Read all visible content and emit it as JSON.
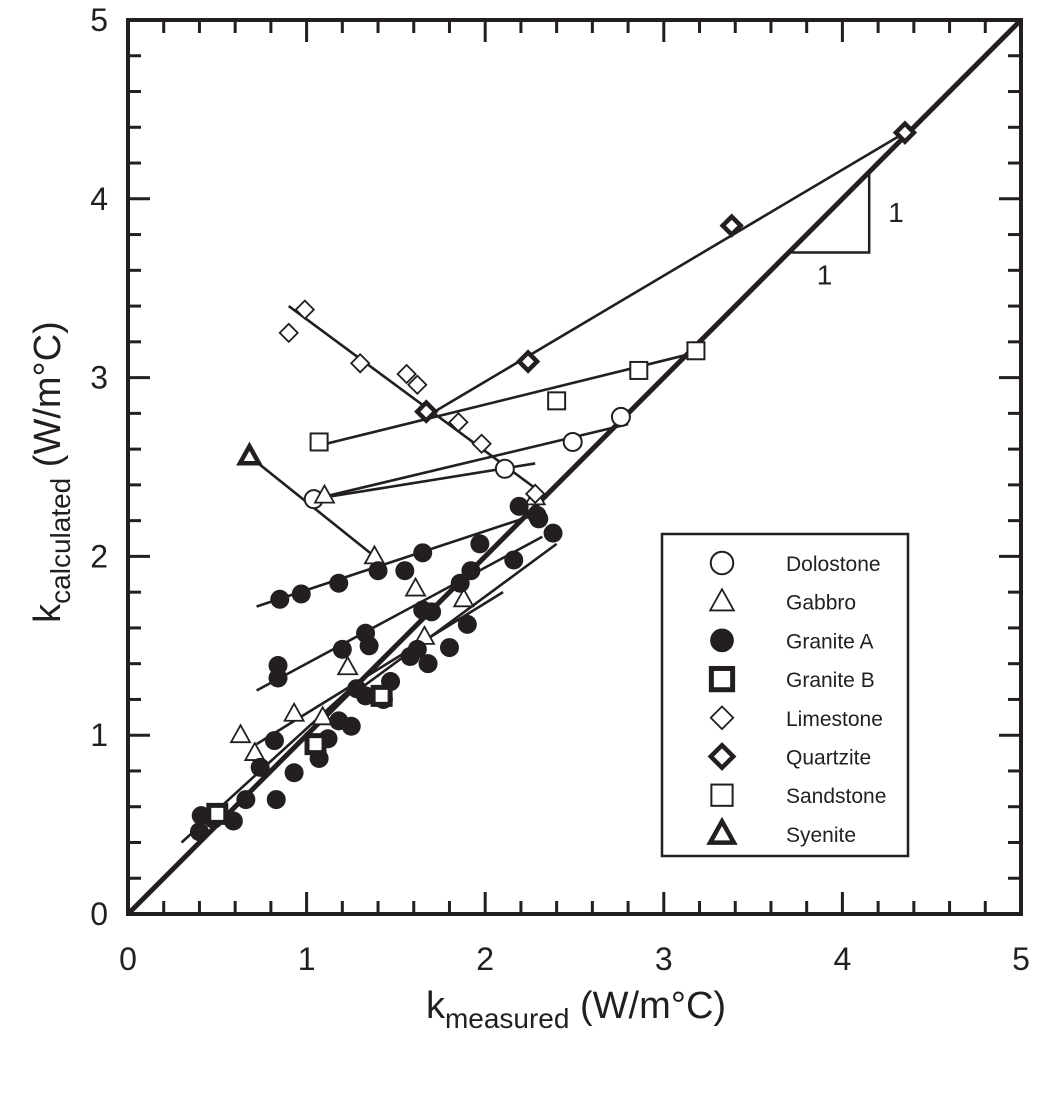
{
  "chart_data": {
    "type": "scatter",
    "title": "",
    "xlabel": {
      "main": "k",
      "sub": "measured",
      "unit": " (W/m°C)"
    },
    "ylabel": {
      "main": "k",
      "sub": "calculated",
      "unit": " (W/m°C)"
    },
    "xlim": [
      0,
      5
    ],
    "ylim": [
      0,
      5
    ],
    "x_ticks": [
      "0",
      "1",
      "2",
      "3",
      "4",
      "5"
    ],
    "y_ticks": [
      "0",
      "1",
      "2",
      "3",
      "4",
      "5"
    ],
    "minor_step": 0.2,
    "grid": false,
    "legend_position": "lower-right",
    "colors": {
      "ink": "#231f20",
      "background": "#ffffff"
    },
    "reference_line": {
      "points": [
        [
          0,
          0
        ],
        [
          5,
          5
        ]
      ]
    },
    "slope_marker": {
      "points": [
        [
          3.7,
          3.7
        ],
        [
          4.15,
          3.7
        ],
        [
          4.15,
          4.15
        ]
      ],
      "label_run": "1",
      "label_rise": "1",
      "label_run_at": [
        3.9,
        3.52
      ],
      "label_rise_at": [
        4.3,
        3.87
      ]
    },
    "series": [
      {
        "name": "Dolostone",
        "marker": "circle-open",
        "points": [
          [
            1.04,
            2.32
          ],
          [
            2.11,
            2.49
          ],
          [
            2.49,
            2.64
          ],
          [
            2.76,
            2.78
          ]
        ],
        "fit": [
          [
            1.04,
            2.32
          ],
          [
            2.8,
            2.74
          ]
        ]
      },
      {
        "name": "Gabbro",
        "marker": "triangle-open",
        "points": [
          [
            0.63,
            1.0
          ],
          [
            0.71,
            0.9
          ],
          [
            0.93,
            1.12
          ],
          [
            1.09,
            1.1
          ],
          [
            1.23,
            1.38
          ],
          [
            1.38,
            2.0
          ],
          [
            1.61,
            1.82
          ],
          [
            1.66,
            1.55
          ],
          [
            1.88,
            1.76
          ],
          [
            1.1,
            2.34
          ],
          [
            2.28,
            2.33
          ]
        ],
        "fit": [
          [
            1.1,
            2.33
          ],
          [
            2.28,
            2.52
          ]
        ]
      },
      {
        "name": "Granite A",
        "marker": "circle-filled",
        "points": [
          [
            0.4,
            0.46
          ],
          [
            0.41,
            0.55
          ],
          [
            0.48,
            0.53
          ],
          [
            0.59,
            0.52
          ],
          [
            0.66,
            0.64
          ],
          [
            0.74,
            0.82
          ],
          [
            0.83,
            0.64
          ],
          [
            0.82,
            0.97
          ],
          [
            0.93,
            0.79
          ],
          [
            1.07,
            0.87
          ],
          [
            1.12,
            0.98
          ],
          [
            1.18,
            1.08
          ],
          [
            1.25,
            1.05
          ],
          [
            0.84,
            1.32
          ],
          [
            0.84,
            1.39
          ],
          [
            1.2,
            1.48
          ],
          [
            1.33,
            1.57
          ],
          [
            1.35,
            1.5
          ],
          [
            1.28,
            1.26
          ],
          [
            1.33,
            1.22
          ],
          [
            1.43,
            1.2
          ],
          [
            1.47,
            1.3
          ],
          [
            1.58,
            1.44
          ],
          [
            1.62,
            1.48
          ],
          [
            1.68,
            1.4
          ],
          [
            1.8,
            1.49
          ],
          [
            1.9,
            1.62
          ],
          [
            1.55,
            1.92
          ],
          [
            1.65,
            1.7
          ],
          [
            1.7,
            1.69
          ],
          [
            1.86,
            1.85
          ],
          [
            1.92,
            1.92
          ],
          [
            1.97,
            2.07
          ],
          [
            2.16,
            1.98
          ],
          [
            2.19,
            2.28
          ],
          [
            2.3,
            2.21
          ],
          [
            2.38,
            2.13
          ],
          [
            0.85,
            1.76
          ],
          [
            0.97,
            1.79
          ],
          [
            1.18,
            1.85
          ],
          [
            1.4,
            1.92
          ],
          [
            1.65,
            2.02
          ],
          [
            2.29,
            2.23
          ]
        ],
        "fit_lines": [
          [
            [
              0.3,
              0.4
            ],
            [
              1.3,
              1.31
            ]
          ],
          [
            [
              0.72,
              0.95
            ],
            [
              2.1,
              1.8
            ]
          ],
          [
            [
              0.72,
              1.25
            ],
            [
              2.32,
              2.11
            ]
          ],
          [
            [
              0.72,
              1.72
            ],
            [
              2.3,
              2.24
            ]
          ],
          [
            [
              1.3,
              1.26
            ],
            [
              2.4,
              2.07
            ]
          ]
        ]
      },
      {
        "name": "Granite B",
        "marker": "square-filled",
        "points": [
          [
            0.5,
            0.56
          ],
          [
            1.05,
            0.95
          ],
          [
            1.42,
            1.22
          ]
        ],
        "fit": null
      },
      {
        "name": "Limestone",
        "marker": "diamond-open",
        "points": [
          [
            0.9,
            3.25
          ],
          [
            0.99,
            3.38
          ],
          [
            1.3,
            3.08
          ],
          [
            1.56,
            3.02
          ],
          [
            1.62,
            2.96
          ],
          [
            1.85,
            2.75
          ],
          [
            1.98,
            2.63
          ],
          [
            2.28,
            2.35
          ]
        ],
        "fit": [
          [
            0.9,
            3.4
          ],
          [
            2.35,
            2.33
          ]
        ]
      },
      {
        "name": "Quartzite",
        "marker": "diamond-filled",
        "points": [
          [
            1.67,
            2.81
          ],
          [
            2.24,
            3.09
          ],
          [
            3.38,
            3.85
          ],
          [
            4.35,
            4.37
          ]
        ],
        "fit": [
          [
            1.7,
            2.8
          ],
          [
            4.35,
            4.37
          ]
        ]
      },
      {
        "name": "Sandstone",
        "marker": "square-open",
        "points": [
          [
            1.07,
            2.64
          ],
          [
            2.4,
            2.87
          ],
          [
            2.86,
            3.04
          ],
          [
            3.18,
            3.15
          ]
        ],
        "fit": [
          [
            1.07,
            2.62
          ],
          [
            3.18,
            3.14
          ]
        ]
      },
      {
        "name": "Syenite",
        "marker": "triangle-filled",
        "points": [
          [
            0.68,
            2.56
          ]
        ],
        "fit": [
          [
            0.68,
            2.56
          ],
          [
            1.38,
            2.0
          ]
        ]
      }
    ]
  }
}
